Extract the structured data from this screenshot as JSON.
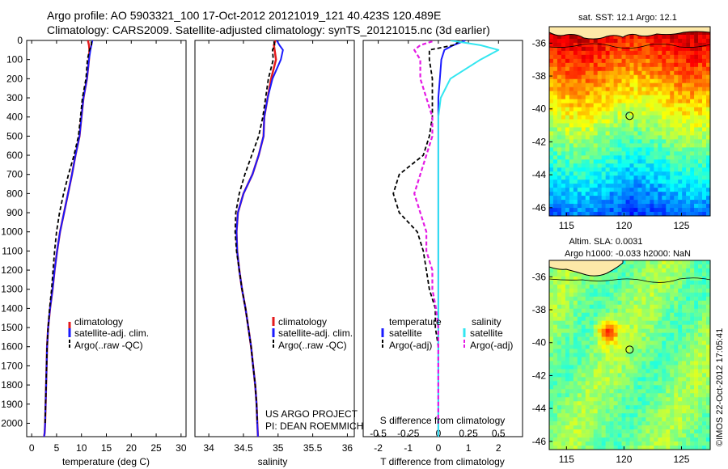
{
  "titles": {
    "line1": "Argo profile: AO 5903321_100 17-Oct-2012 20121019_121 40.423S 120.489E",
    "line2": "Climatology: CARS2009. Satellite-adjusted climatology: synTS_20121015.nc (3d earlier)"
  },
  "colors": {
    "climatology": "#e41a1c",
    "satellite": "#1a1aff",
    "argo": "#000000",
    "sal_satellite": "#33e6f0",
    "sal_argo": "#e41ae4"
  },
  "chart_data": [
    {
      "type": "line",
      "panel": "temperature",
      "xlabel": "temperature (deg C)",
      "ylabel": "",
      "xlim": [
        -1,
        31
      ],
      "ylim": [
        2070,
        0
      ],
      "xticks": [
        "0",
        "5",
        "10",
        "15",
        "20",
        "25",
        "30"
      ],
      "yticks": [
        "0",
        "100",
        "200",
        "300",
        "400",
        "500",
        "600",
        "700",
        "800",
        "900",
        "1000",
        "1100",
        "1200",
        "1300",
        "1400",
        "1500",
        "1600",
        "1700",
        "1800",
        "1900",
        "2000"
      ],
      "legend": [
        "climatology",
        "satellite-adj. clim.",
        "Argo(..raw -QC)"
      ],
      "series": [
        {
          "name": "climatology",
          "x": [
            11.3,
            11.5,
            11.6,
            11.5,
            11.1,
            10.4,
            10.0,
            9.6,
            8.8,
            8.1,
            7.3,
            6.5,
            5.7,
            5.1,
            4.6,
            4.2,
            3.7,
            3.3,
            3.1,
            3.0,
            2.9,
            2.8,
            2.7,
            2.6,
            2.5
          ],
          "y": [
            0,
            25,
            50,
            100,
            200,
            300,
            400,
            500,
            600,
            700,
            800,
            900,
            1000,
            1100,
            1200,
            1300,
            1400,
            1500,
            1600,
            1700,
            1800,
            1900,
            2000,
            2050,
            2070
          ]
        },
        {
          "name": "satellite-adj. clim.",
          "x": [
            12.2,
            12.0,
            11.8,
            11.5,
            11.1,
            10.4,
            10.0,
            9.6,
            8.8,
            8.1,
            7.3,
            6.5,
            5.7,
            5.1,
            4.6,
            4.2,
            3.7,
            3.3,
            3.1,
            3.0,
            2.9,
            2.8,
            2.7,
            2.6,
            2.5
          ],
          "y": [
            0,
            25,
            50,
            100,
            200,
            300,
            400,
            500,
            600,
            700,
            800,
            900,
            1000,
            1100,
            1200,
            1300,
            1400,
            1500,
            1600,
            1700,
            1800,
            1900,
            2000,
            2050,
            2070
          ]
        },
        {
          "name": "Argo(..raw -QC)",
          "x": [
            12.0,
            12.0,
            11.6,
            11.2,
            10.9,
            10.2,
            9.8,
            9.4,
            8.5,
            7.4,
            6.4,
            5.6,
            5.0,
            4.6,
            4.3,
            4.0,
            3.6,
            3.3,
            3.1,
            3.0,
            2.9,
            2.8,
            2.7
          ],
          "y": [
            5,
            25,
            50,
            100,
            200,
            300,
            400,
            500,
            600,
            700,
            800,
            900,
            1000,
            1100,
            1200,
            1300,
            1400,
            1500,
            1600,
            1700,
            1800,
            1900,
            2000
          ]
        }
      ]
    },
    {
      "type": "line",
      "panel": "salinity",
      "xlabel": "salinity",
      "ylabel": "",
      "xlim": [
        33.8,
        36.1
      ],
      "ylim": [
        2070,
        0
      ],
      "xticks": [
        "34",
        "34.5",
        "35",
        "35.5",
        "36"
      ],
      "legend": [
        "climatology",
        "satellite-adj. clim.",
        "Argo(..raw -QC)"
      ],
      "annotations": [
        "US ARGO PROJECT",
        "PI: DEAN ROEMMICH"
      ],
      "series": [
        {
          "name": "climatology",
          "x": [
            34.96,
            34.94,
            34.95,
            34.97,
            34.9,
            34.85,
            34.8,
            34.79,
            34.72,
            34.63,
            34.5,
            34.42,
            34.4,
            34.41,
            34.44,
            34.48,
            34.53,
            34.57,
            34.61,
            34.64,
            34.67,
            34.69,
            34.7,
            34.71
          ],
          "y": [
            0,
            25,
            50,
            100,
            200,
            300,
            400,
            500,
            600,
            700,
            800,
            900,
            1000,
            1100,
            1200,
            1300,
            1400,
            1500,
            1600,
            1700,
            1800,
            1900,
            2000,
            2070
          ]
        },
        {
          "name": "satellite-adj. clim.",
          "x": [
            34.98,
            35.02,
            35.07,
            35.04,
            34.92,
            34.85,
            34.8,
            34.79,
            34.72,
            34.63,
            34.5,
            34.42,
            34.4,
            34.41,
            34.44,
            34.48,
            34.53,
            34.57,
            34.61,
            34.64,
            34.67,
            34.69,
            34.7,
            34.71
          ],
          "y": [
            0,
            25,
            50,
            100,
            200,
            300,
            400,
            500,
            600,
            700,
            800,
            900,
            1000,
            1100,
            1200,
            1300,
            1400,
            1500,
            1600,
            1700,
            1800,
            1900,
            2000,
            2070
          ]
        },
        {
          "name": "Argo(..raw -QC)",
          "x": [
            34.94,
            34.95,
            34.92,
            34.93,
            34.86,
            34.82,
            34.78,
            34.72,
            34.62,
            34.52,
            34.44,
            34.39,
            34.38,
            34.4,
            34.44,
            34.48,
            34.53,
            34.57,
            34.61,
            34.64,
            34.67,
            34.69,
            34.7
          ],
          "y": [
            5,
            25,
            50,
            100,
            200,
            300,
            400,
            500,
            600,
            700,
            800,
            900,
            1000,
            1100,
            1200,
            1300,
            1400,
            1500,
            1600,
            1700,
            1800,
            1900,
            2000
          ]
        }
      ]
    },
    {
      "type": "line",
      "panel": "difference",
      "xlabel": "T difference from climatology",
      "xlabel_top": "S difference from climatology",
      "xlim": [
        -2.5,
        2.8
      ],
      "ylim": [
        2070,
        0
      ],
      "xticks": [
        "-2",
        "-1",
        "0",
        "1",
        "2"
      ],
      "xticks_top": [
        "-0.5",
        "-0.25",
        "0",
        "0.25",
        "0.5"
      ],
      "legend_titles": [
        "temperature",
        "salinity"
      ],
      "legend": [
        "satellite",
        "Argo(-adj)",
        "satellite",
        "Argo(-adj)"
      ],
      "series": [
        {
          "name": "temperature satellite",
          "x": [
            0.9,
            0.5,
            0.2,
            0.1,
            0.05,
            0,
            0,
            0,
            0,
            0,
            0,
            0,
            0,
            0,
            0,
            0,
            0,
            0,
            0,
            0,
            0
          ],
          "y": [
            0,
            25,
            50,
            100,
            200,
            300,
            400,
            600,
            800,
            1000,
            1200,
            1300,
            1400,
            1500,
            1600,
            1700,
            1800,
            1900,
            2000,
            2050,
            2070
          ]
        },
        {
          "name": "temperature Argo(-adj)",
          "x": [
            0.7,
            0.5,
            -0.3,
            -0.3,
            -0.2,
            -0.2,
            -0.2,
            -0.3,
            -0.5,
            -1.3,
            -1.5,
            -1.3,
            -0.7,
            -0.5,
            -0.4,
            -0.3,
            -0.1,
            -0.1,
            0,
            0,
            0,
            0
          ],
          "y": [
            5,
            25,
            50,
            100,
            200,
            300,
            400,
            500,
            600,
            700,
            800,
            900,
            1000,
            1100,
            1200,
            1300,
            1400,
            1500,
            1600,
            1700,
            1800,
            2000
          ]
        },
        {
          "name": "salinity satellite",
          "x": [
            0.1,
            0.35,
            0.5,
            0.35,
            0.1,
            0.02,
            0,
            0,
            0,
            0,
            0,
            0,
            0,
            0,
            0,
            0,
            0,
            0,
            0,
            0
          ],
          "y": [
            0,
            25,
            50,
            100,
            200,
            300,
            400,
            600,
            800,
            1000,
            1200,
            1300,
            1400,
            1500,
            1600,
            1700,
            1800,
            1900,
            2000,
            2070
          ]
        },
        {
          "name": "salinity Argo(-adj)",
          "x": [
            -0.05,
            -0.15,
            -0.2,
            -0.15,
            -0.15,
            -0.1,
            -0.05,
            -0.05,
            -0.1,
            -0.15,
            -0.2,
            -0.15,
            -0.1,
            -0.1,
            -0.05,
            -0.05,
            -0.02,
            0,
            0,
            0
          ],
          "y": [
            5,
            25,
            50,
            100,
            200,
            300,
            400,
            500,
            600,
            700,
            800,
            900,
            1000,
            1100,
            1200,
            1300,
            1400,
            1500,
            1700,
            2000
          ]
        }
      ]
    },
    {
      "type": "heatmap",
      "panel": "sst_map",
      "title": "sat. SST: 12.1  Argo: 12.1",
      "xlim": [
        113.5,
        127.5
      ],
      "ylim": [
        -46.5,
        -35
      ],
      "xticks": [
        "115",
        "120",
        "125"
      ],
      "yticks": [
        "-36",
        "-38",
        "-40",
        "-42",
        "-44",
        "-46"
      ],
      "marker": {
        "lon": 120.489,
        "lat": -40.423
      }
    },
    {
      "type": "heatmap",
      "panel": "sla_map",
      "title_line1": "Altim. SLA: 0.0031",
      "title_line2": "Argo h1000: -0.033 h2000: NaN",
      "xlim": [
        113.5,
        127.5
      ],
      "ylim": [
        -46.5,
        -35
      ],
      "xticks": [
        "115",
        "120",
        "125"
      ],
      "yticks": [
        "-36",
        "-38",
        "-40",
        "-42",
        "-44",
        "-46"
      ],
      "marker": {
        "lon": 120.489,
        "lat": -40.423
      }
    }
  ],
  "side_label": "©IMOS 22-Oct-2012 17:05:41"
}
